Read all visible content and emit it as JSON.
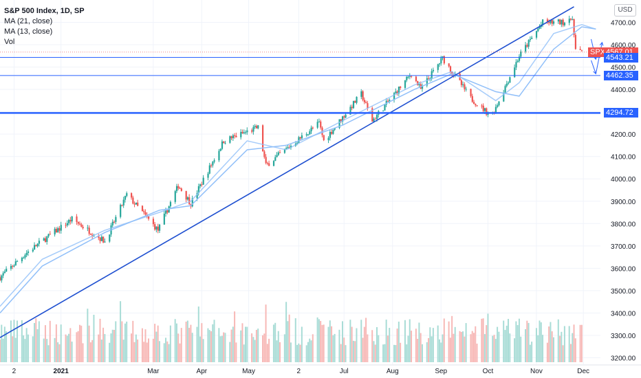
{
  "legend": {
    "title": "S&P 500 Index, 1D, SP",
    "indicators": [
      "MA (21, close)",
      "MA (13, close)",
      "Vol"
    ]
  },
  "currency_button": "USD",
  "colors": {
    "up": "#26a69a",
    "down": "#ef5350",
    "ma": "#90bff9",
    "trendline": "#1e4fd0",
    "level": "#2962ff",
    "axis_text": "#131722"
  },
  "chart_data": {
    "type": "candlestick",
    "title": "S&P 500 Index, 1D, SP",
    "y_axis": {
      "position": "right",
      "range": [
        3140,
        4800
      ],
      "ticks": [
        3200,
        3300,
        3400,
        3500,
        3600,
        3700,
        3800,
        3900,
        4000,
        4100,
        4200,
        4300,
        4400,
        4500,
        4600,
        4700
      ],
      "tick_labels": [
        "3200.00",
        "3300.00",
        "3400.00",
        "3500.00",
        "3600.00",
        "3700.00",
        "3800.00",
        "3900.00",
        "4000.00",
        "4100.00",
        "4200.00",
        "4300.00",
        "4400.00",
        "4500.00",
        "4600.00",
        "4700.00"
      ]
    },
    "x_axis": {
      "range": [
        "2020-11-23",
        "2021-12-15"
      ],
      "ticks": [
        {
          "date": "2020-12-02",
          "label": "2",
          "bold": false
        },
        {
          "date": "2021-01-01",
          "label": "2021",
          "bold": true
        },
        {
          "date": "2021-03-01",
          "label": "Mar",
          "bold": false
        },
        {
          "date": "2021-04-01",
          "label": "Apr",
          "bold": false
        },
        {
          "date": "2021-05-01",
          "label": "May",
          "bold": false
        },
        {
          "date": "2021-06-02",
          "label": "2",
          "bold": false
        },
        {
          "date": "2021-07-01",
          "label": "Jul",
          "bold": false
        },
        {
          "date": "2021-08-01",
          "label": "Aug",
          "bold": false
        },
        {
          "date": "2021-09-01",
          "label": "Sep",
          "bold": false
        },
        {
          "date": "2021-10-01",
          "label": "Oct",
          "bold": false
        },
        {
          "date": "2021-11-01",
          "label": "Nov",
          "bold": false
        },
        {
          "date": "2021-12-01",
          "label": "Dec",
          "bold": false
        }
      ]
    },
    "price_path": [
      {
        "date": "2020-11-23",
        "close": 3560
      },
      {
        "date": "2020-12-10",
        "close": 3670
      },
      {
        "date": "2021-01-08",
        "close": 3820
      },
      {
        "date": "2021-01-29",
        "close": 3720
      },
      {
        "date": "2021-02-12",
        "close": 3930
      },
      {
        "date": "2021-03-04",
        "close": 3770
      },
      {
        "date": "2021-03-17",
        "close": 3970
      },
      {
        "date": "2021-03-25",
        "close": 3890
      },
      {
        "date": "2021-04-15",
        "close": 4170
      },
      {
        "date": "2021-05-07",
        "close": 4230
      },
      {
        "date": "2021-05-12",
        "close": 4060
      },
      {
        "date": "2021-06-15",
        "close": 4250
      },
      {
        "date": "2021-06-18",
        "close": 4170
      },
      {
        "date": "2021-07-12",
        "close": 4380
      },
      {
        "date": "2021-07-19",
        "close": 4260
      },
      {
        "date": "2021-08-13",
        "close": 4470
      },
      {
        "date": "2021-08-19",
        "close": 4400
      },
      {
        "date": "2021-09-02",
        "close": 4540
      },
      {
        "date": "2021-09-20",
        "close": 4360
      },
      {
        "date": "2021-09-30",
        "close": 4300
      },
      {
        "date": "2021-10-04",
        "close": 4290
      },
      {
        "date": "2021-10-21",
        "close": 4550
      },
      {
        "date": "2021-11-05",
        "close": 4700
      },
      {
        "date": "2021-11-19",
        "close": 4700
      },
      {
        "date": "2021-11-22",
        "close": 4730
      },
      {
        "date": "2021-11-24",
        "close": 4700
      },
      {
        "date": "2021-11-26",
        "close": 4594
      },
      {
        "date": "2021-11-30",
        "close": 4567
      }
    ],
    "ma21_path": [
      {
        "date": "2020-11-23",
        "value": 3400
      },
      {
        "date": "2020-12-20",
        "value": 3610
      },
      {
        "date": "2021-01-29",
        "value": 3760
      },
      {
        "date": "2021-03-05",
        "value": 3860
      },
      {
        "date": "2021-03-25",
        "value": 3880
      },
      {
        "date": "2021-04-30",
        "value": 4130
      },
      {
        "date": "2021-05-25",
        "value": 4150
      },
      {
        "date": "2021-06-30",
        "value": 4240
      },
      {
        "date": "2021-08-15",
        "value": 4400
      },
      {
        "date": "2021-09-08",
        "value": 4470
      },
      {
        "date": "2021-10-06",
        "value": 4390
      },
      {
        "date": "2021-10-21",
        "value": 4370
      },
      {
        "date": "2021-11-12",
        "value": 4580
      },
      {
        "date": "2021-11-30",
        "value": 4680
      },
      {
        "date": "2021-12-09",
        "value": 4670
      }
    ],
    "ma13_path": [
      {
        "date": "2020-11-23",
        "value": 3430
      },
      {
        "date": "2020-12-20",
        "value": 3640
      },
      {
        "date": "2021-01-29",
        "value": 3770
      },
      {
        "date": "2021-03-05",
        "value": 3850
      },
      {
        "date": "2021-03-25",
        "value": 3900
      },
      {
        "date": "2021-04-30",
        "value": 4170
      },
      {
        "date": "2021-05-25",
        "value": 4130
      },
      {
        "date": "2021-06-30",
        "value": 4260
      },
      {
        "date": "2021-08-15",
        "value": 4420
      },
      {
        "date": "2021-09-08",
        "value": 4480
      },
      {
        "date": "2021-10-06",
        "value": 4350
      },
      {
        "date": "2021-10-21",
        "value": 4430
      },
      {
        "date": "2021-11-12",
        "value": 4650
      },
      {
        "date": "2021-11-30",
        "value": 4690
      },
      {
        "date": "2021-12-09",
        "value": 4670
      }
    ],
    "trendline": {
      "from": {
        "date": "2020-11-23",
        "value": 3290
      },
      "to": {
        "date": "2021-11-25",
        "value": 4770
      }
    },
    "levels": [
      {
        "value": 4543.21,
        "label": "4543.21"
      },
      {
        "value": 4462.35,
        "label": "4462.35"
      },
      {
        "value": 4294.72,
        "label": "4294.72",
        "thick": true
      }
    ],
    "last_price": {
      "symbol": "SPX",
      "value": 4567.01,
      "label": "4567.01"
    },
    "projection_arrows": [
      [
        {
          "date": "2021-12-06",
          "value": 4625
        },
        {
          "date": "2021-12-09",
          "value": 4535
        }
      ],
      [
        {
          "date": "2021-12-06",
          "value": 4530
        },
        {
          "date": "2021-12-09",
          "value": 4470
        }
      ],
      [
        {
          "date": "2021-12-09",
          "value": 4470
        },
        {
          "date": "2021-12-13",
          "value": 4610
        }
      ]
    ],
    "volume": {
      "baseline_price": 3180,
      "max_height_price": 3450
    }
  }
}
